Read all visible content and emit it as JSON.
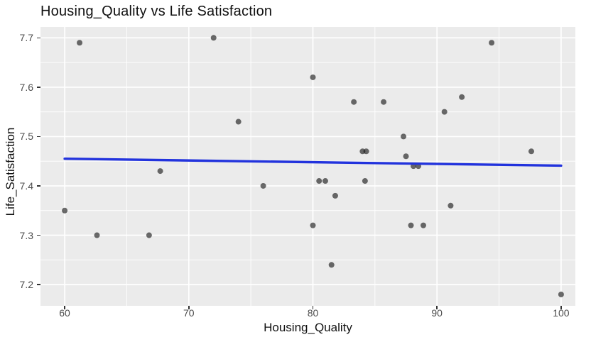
{
  "title": "Housing_Quality vs Life Satisfaction",
  "chart_data": {
    "type": "scatter",
    "title": "Housing_Quality vs Life Satisfaction",
    "xlabel": "Housing_Quality",
    "ylabel": "Life_Satisfaction",
    "xlim": [
      58.05,
      101.15
    ],
    "ylim": [
      7.157,
      7.722
    ],
    "x_ticks": [
      60,
      70,
      80,
      90,
      100
    ],
    "y_ticks": [
      7.2,
      7.3,
      7.4,
      7.5,
      7.6,
      7.7
    ],
    "x_minor_gridlines": [
      65,
      75,
      85,
      95
    ],
    "y_minor_gridlines": [
      7.25,
      7.35,
      7.45,
      7.55,
      7.65
    ],
    "grid": "on",
    "legend": "none",
    "points": [
      [
        60,
        7.35
      ],
      [
        61.2,
        7.69
      ],
      [
        62.6,
        7.3
      ],
      [
        66.8,
        7.3
      ],
      [
        67.7,
        7.43
      ],
      [
        72,
        7.7
      ],
      [
        74,
        7.53
      ],
      [
        76,
        7.4
      ],
      [
        80,
        7.62
      ],
      [
        80,
        7.32
      ],
      [
        80.5,
        7.41
      ],
      [
        81,
        7.41
      ],
      [
        81.5,
        7.24
      ],
      [
        81.8,
        7.38
      ],
      [
        83.3,
        7.57
      ],
      [
        84,
        7.47
      ],
      [
        84.3,
        7.47
      ],
      [
        84.2,
        7.41
      ],
      [
        85.7,
        7.57
      ],
      [
        87.3,
        7.5
      ],
      [
        87.5,
        7.46
      ],
      [
        87.9,
        7.32
      ],
      [
        88.1,
        7.44
      ],
      [
        88.5,
        7.44
      ],
      [
        88.9,
        7.32
      ],
      [
        90.6,
        7.55
      ],
      [
        91.1,
        7.36
      ],
      [
        92,
        7.58
      ],
      [
        94.4,
        7.69
      ],
      [
        97.6,
        7.47
      ],
      [
        100,
        7.18
      ]
    ],
    "trend_line": {
      "type": "linear",
      "x1": 60,
      "y1": 7.455,
      "x2": 100,
      "y2": 7.441
    },
    "colors": {
      "panel_bg": "#EBEBEB",
      "grid": "#FFFFFF",
      "point": "#141414",
      "point_opacity": 0.62,
      "trend": "#2233DD",
      "axis_text": "#4D4D4D",
      "title_text": "#111111"
    }
  }
}
